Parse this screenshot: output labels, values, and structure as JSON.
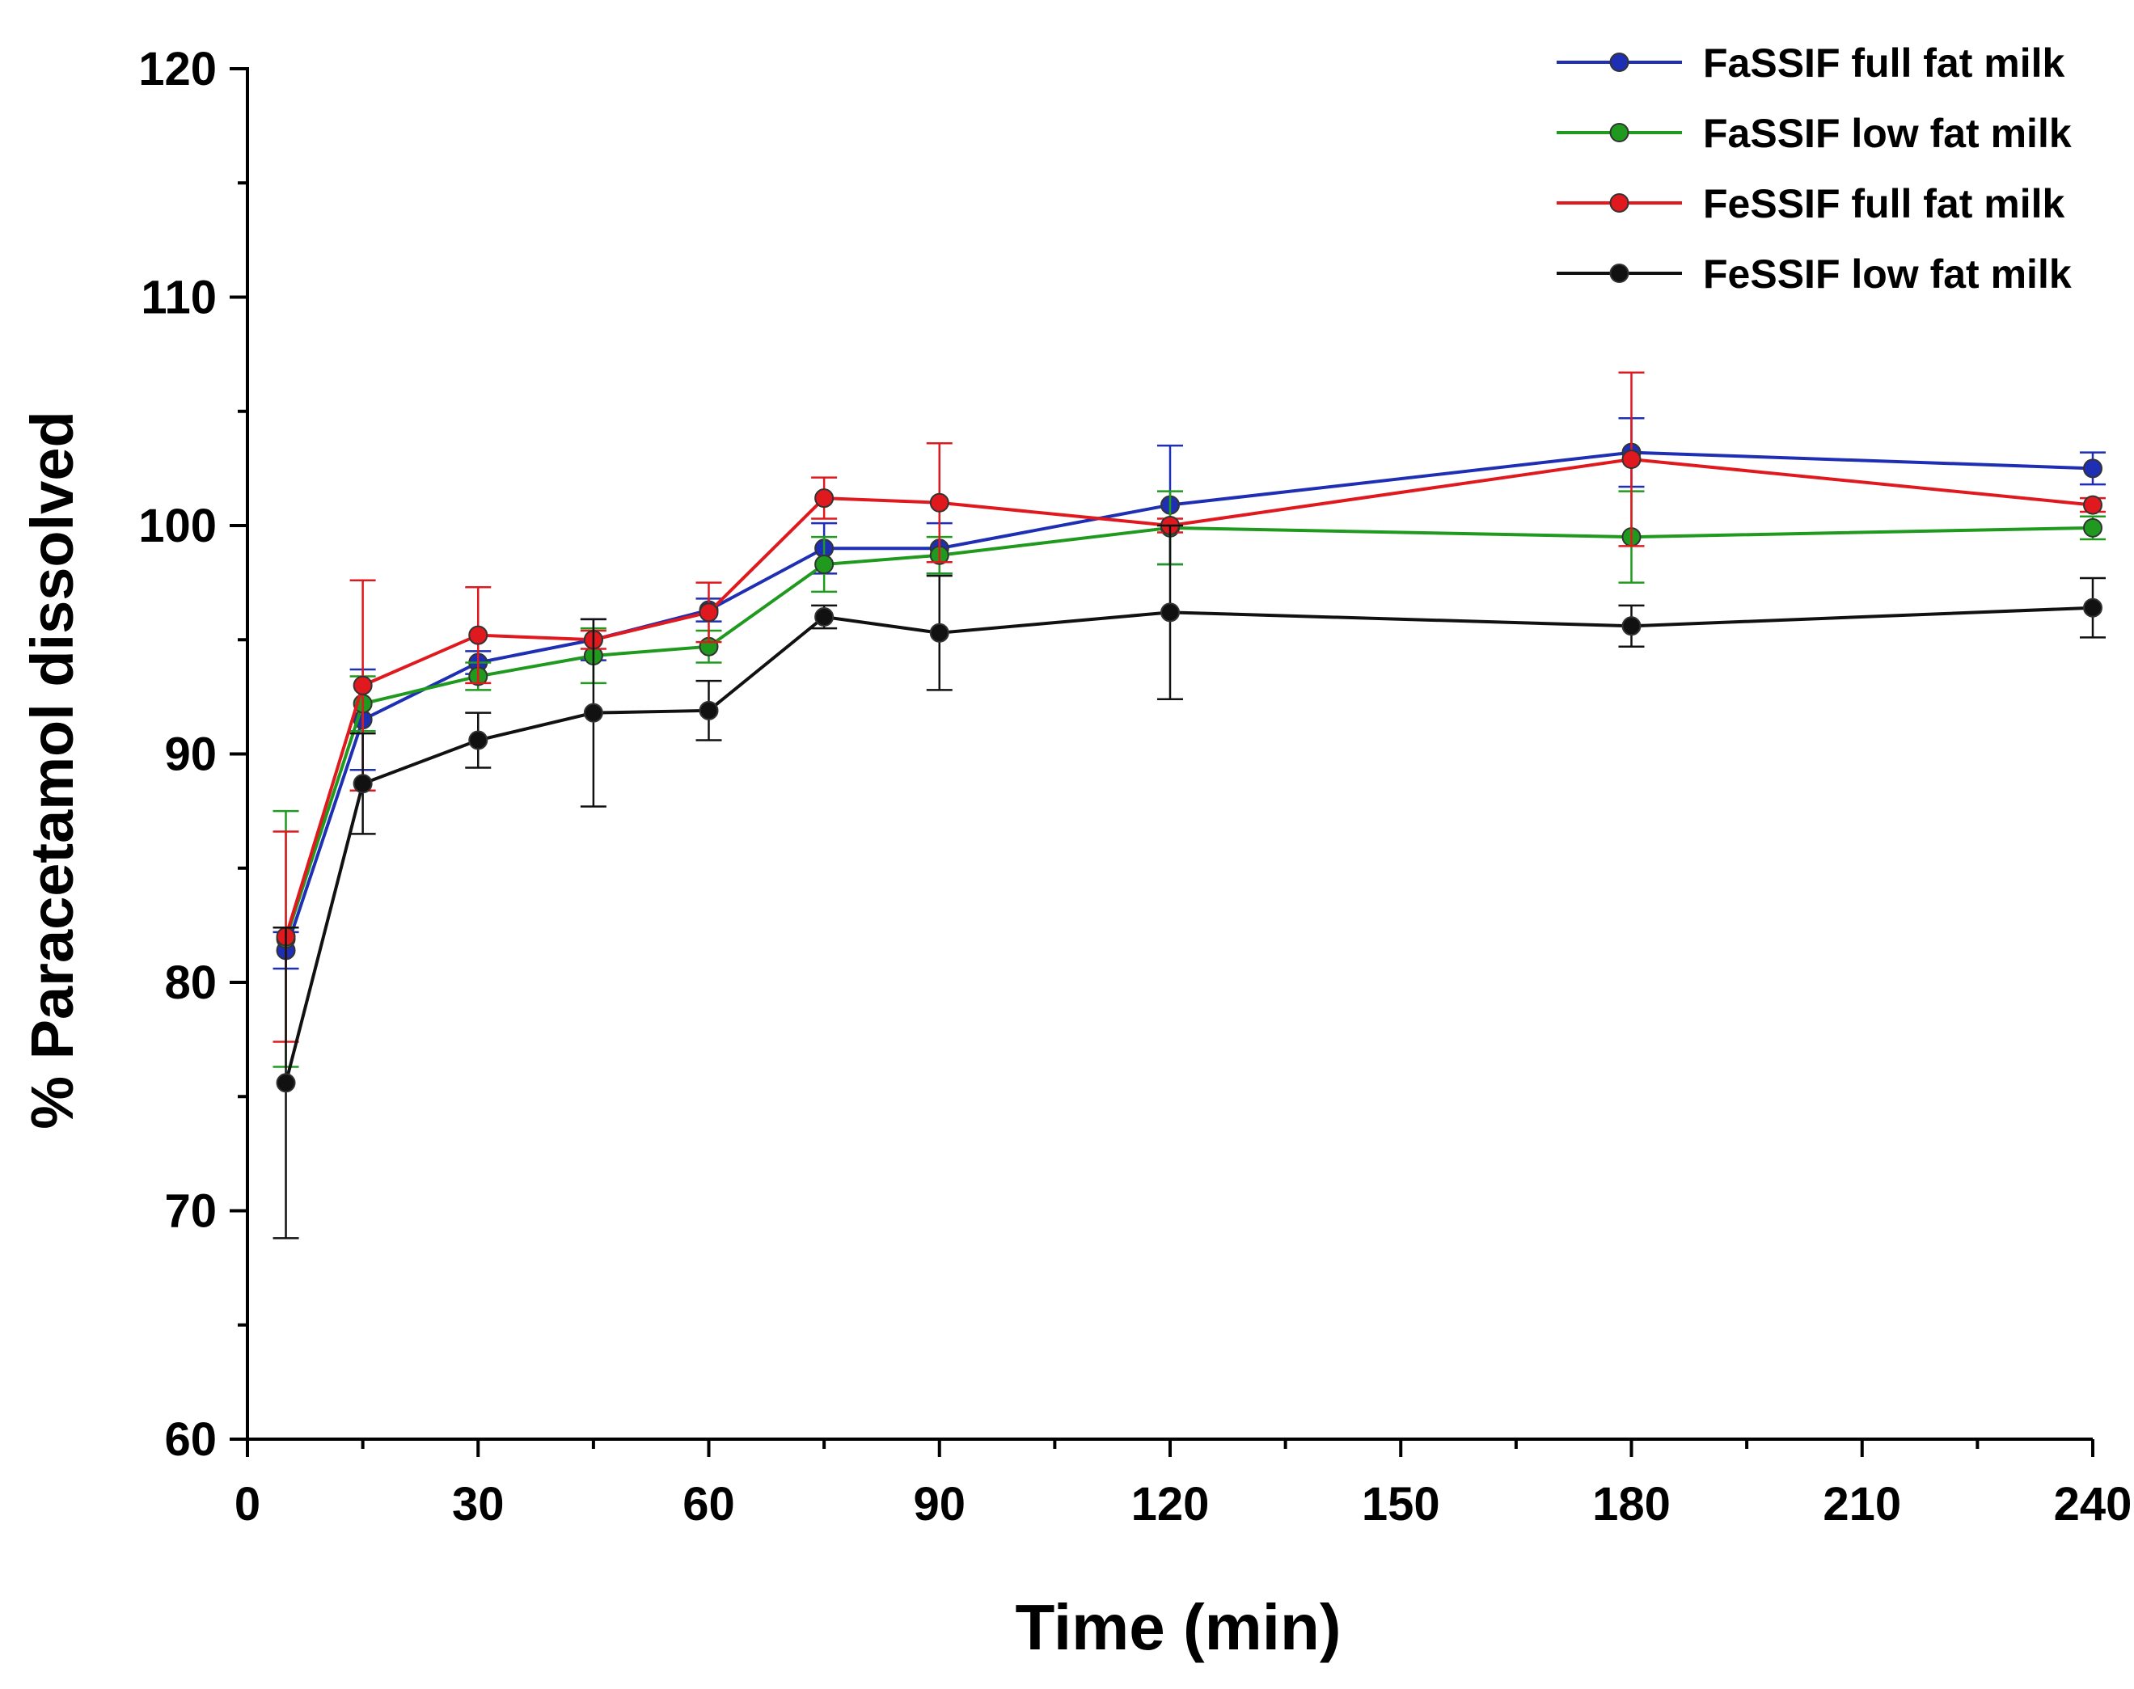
{
  "chart_data": {
    "type": "line",
    "title": "",
    "xlabel": "Time (min)",
    "ylabel": "% Paracetamol dissolved",
    "xlim": [
      0,
      240
    ],
    "ylim": [
      60,
      120
    ],
    "xticks": [
      0,
      30,
      60,
      90,
      120,
      150,
      180,
      210,
      240
    ],
    "yticks": [
      60,
      70,
      80,
      90,
      100,
      110,
      120
    ],
    "x": [
      5,
      15,
      30,
      45,
      60,
      75,
      90,
      120,
      180,
      240
    ],
    "legend_position": "top-right",
    "series": [
      {
        "name": "FaSSIF full fat milk",
        "color": "#1f2fb4",
        "values": [
          81.4,
          91.5,
          94.0,
          95.0,
          96.3,
          99.0,
          99.0,
          100.9,
          103.2,
          102.5
        ],
        "errors": [
          0.8,
          2.2,
          0.5,
          0.9,
          0.5,
          1.1,
          1.1,
          2.6,
          1.5,
          0.7
        ]
      },
      {
        "name": "FaSSIF low fat milk",
        "color": "#1f9a1f",
        "values": [
          81.9,
          92.2,
          93.4,
          94.3,
          94.7,
          98.3,
          98.7,
          99.9,
          99.5,
          99.9
        ],
        "errors": [
          5.6,
          1.2,
          0.6,
          1.2,
          0.7,
          1.2,
          0.8,
          1.6,
          2.0,
          0.5
        ]
      },
      {
        "name": "FeSSIF full fat milk",
        "color": "#e0191e",
        "values": [
          82.0,
          93.0,
          95.2,
          95.0,
          96.2,
          101.2,
          101.0,
          100.0,
          102.9,
          100.9
        ],
        "errors": [
          4.6,
          4.6,
          2.1,
          0.4,
          1.3,
          0.9,
          2.6,
          0.3,
          3.8,
          0.3
        ]
      },
      {
        "name": "FeSSIF low fat milk",
        "color": "#111111",
        "values": [
          75.6,
          88.7,
          90.6,
          91.8,
          91.9,
          96.0,
          95.3,
          96.2,
          95.6,
          96.4
        ],
        "errors": [
          6.8,
          2.2,
          1.2,
          4.1,
          1.3,
          0.5,
          2.5,
          3.8,
          0.9,
          1.3
        ]
      }
    ]
  }
}
